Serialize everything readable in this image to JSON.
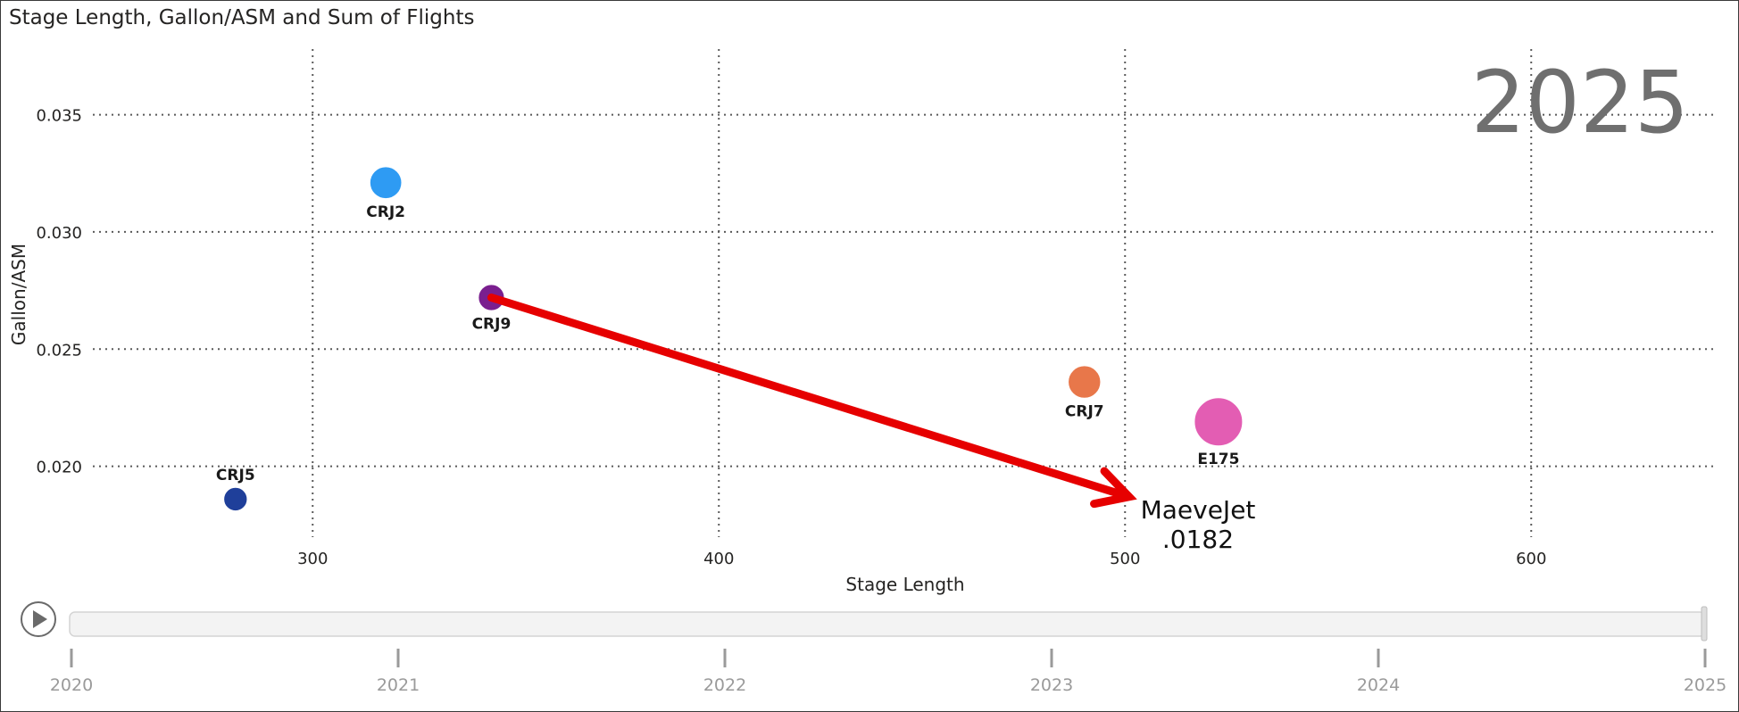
{
  "title": "Stage Length, Gallon/ASM and Sum of Flights",
  "chart_data": {
    "type": "scatter",
    "title": "Stage Length, Gallon/ASM and Sum of Flights",
    "xlabel": "Stage Length",
    "ylabel": "Gallon/ASM",
    "xlim": [
      245,
      645
    ],
    "ylim": [
      0.0166,
      0.0378
    ],
    "x_ticks": [
      300,
      400,
      500,
      600
    ],
    "x_tick_labels": [
      "300",
      "400",
      "500",
      "600"
    ],
    "y_ticks": [
      0.02,
      0.025,
      0.03,
      0.035
    ],
    "y_tick_labels": [
      "0.020",
      "0.025",
      "0.030",
      "0.035"
    ],
    "grid": true,
    "play_year": "2025",
    "points": [
      {
        "label": "CRJ5",
        "x": 281,
        "y": 0.0186,
        "size": 1,
        "color": "#1f3f9a"
      },
      {
        "label": "CRJ2",
        "x": 318,
        "y": 0.0321,
        "size": 3,
        "color": "#2e9bf3"
      },
      {
        "label": "CRJ9",
        "x": 344,
        "y": 0.0272,
        "size": 1.5,
        "color": "#7a1f8f"
      },
      {
        "label": "CRJ7",
        "x": 490,
        "y": 0.0236,
        "size": 3.2,
        "color": "#e8774a"
      },
      {
        "label": "E175",
        "x": 523,
        "y": 0.0219,
        "size": 10,
        "color": "#e35db3"
      }
    ],
    "annotation": {
      "from": {
        "x": 344,
        "y": 0.0272
      },
      "to": {
        "x": 501,
        "y": 0.0187
      },
      "color": "#e60000",
      "text_lines": [
        "MaeveJet",
        ".0182"
      ]
    }
  },
  "timeline": {
    "years": [
      "2020",
      "2021",
      "2022",
      "2023",
      "2024",
      "2025"
    ],
    "current": "2025",
    "progress": 1.0
  }
}
